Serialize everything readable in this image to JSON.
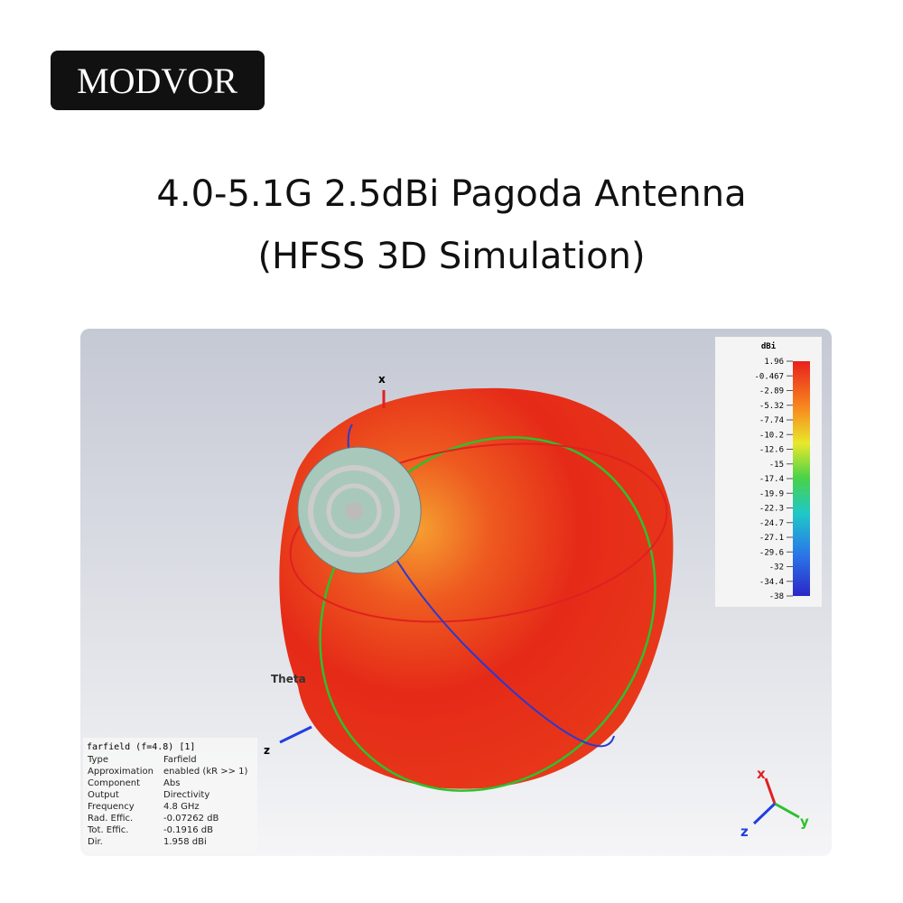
{
  "logo": "MODVOR",
  "title": [
    "4.0-5.1G 2.5dBi Pagoda Antenna",
    "(HFSS 3D Simulation)"
  ],
  "legend": {
    "unit": "dBi",
    "ticks": [
      "1.96",
      "-0.467",
      "-2.89",
      "-5.32",
      "-7.74",
      "-10.2",
      "-12.6",
      "-15",
      "-17.4",
      "-19.9",
      "-22.3",
      "-24.7",
      "-27.1",
      "-29.6",
      "-32",
      "-34.4",
      "-38"
    ]
  },
  "info": {
    "header": "farfield (f=4.8) [1]",
    "rows": [
      [
        "Type",
        "Farfield"
      ],
      [
        "Approximation",
        "enabled (kR >> 1)"
      ],
      [
        "Component",
        "Abs"
      ],
      [
        "Output",
        "Directivity"
      ],
      [
        "Frequency",
        "4.8 GHz"
      ],
      [
        "Rad. Effic.",
        "-0.07262 dB"
      ],
      [
        "Tot. Effic.",
        "-0.1916 dB"
      ],
      [
        "Dir.",
        "1.958 dBi"
      ]
    ]
  },
  "scene_labels": {
    "x": "x",
    "z": "z",
    "theta": "Theta"
  },
  "triad": {
    "x": "x",
    "y": "y",
    "z": "z"
  }
}
